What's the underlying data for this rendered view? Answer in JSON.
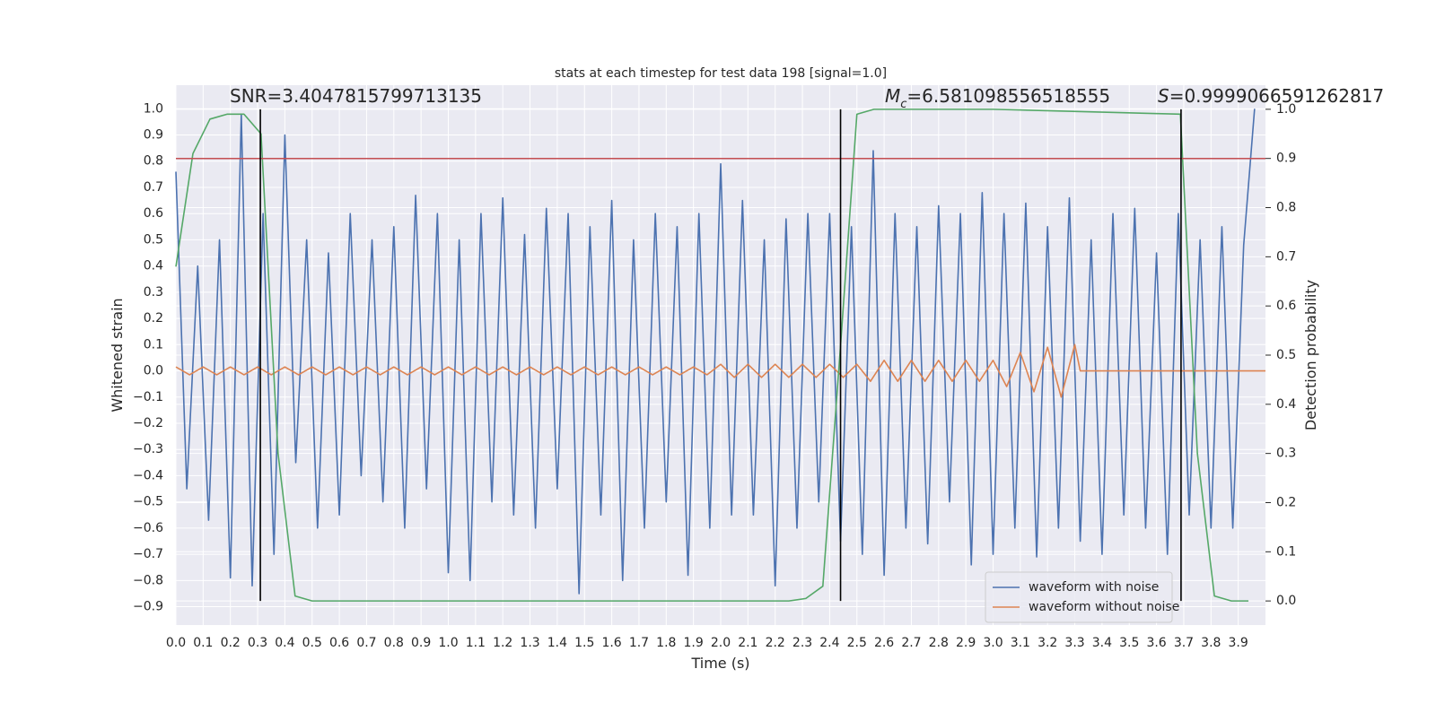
{
  "chart_data": {
    "type": "line",
    "title": "stats at each timestep for test data 198 [signal=1.0]",
    "xlabel": "Time (s)",
    "ylabel": "Whitened strain",
    "y2label": "Detection probability",
    "xlim": [
      0,
      4.0
    ],
    "ylim": [
      -0.97,
      1.09
    ],
    "y2lim": [
      -0.049,
      1.049
    ],
    "xticks": [
      {
        "value": 0,
        "label": "0.0"
      },
      0.1,
      0.2,
      0.3,
      0.4,
      0.5,
      0.6,
      0.7,
      0.8,
      0.9,
      {
        "value": 1,
        "label": "1.0"
      },
      1.1,
      1.2,
      1.3,
      1.4,
      1.5,
      1.6,
      1.7,
      1.8,
      1.9,
      {
        "value": 2,
        "label": "2.0"
      },
      2.1,
      2.2,
      2.3,
      2.4,
      2.5,
      2.6,
      2.7,
      2.8,
      2.9,
      {
        "value": 3,
        "label": "3.0"
      },
      3.1,
      3.2,
      3.3,
      3.4,
      3.5,
      3.6,
      3.7,
      3.8,
      3.9
    ],
    "yticks": [
      {
        "value": -0.9,
        "label": "−0.9"
      },
      {
        "value": -0.8,
        "label": "−0.8"
      },
      {
        "value": -0.7,
        "label": "−0.7"
      },
      {
        "value": -0.6,
        "label": "−0.6"
      },
      {
        "value": -0.5,
        "label": "−0.5"
      },
      {
        "value": -0.4,
        "label": "−0.4"
      },
      {
        "value": -0.3,
        "label": "−0.3"
      },
      {
        "value": -0.2,
        "label": "−0.2"
      },
      {
        "value": -0.1,
        "label": "−0.1"
      },
      {
        "value": 0,
        "label": "0.0"
      },
      0.1,
      0.2,
      0.3,
      0.4,
      0.5,
      0.6,
      0.7,
      0.8,
      0.9,
      {
        "value": 1,
        "label": "1.0"
      }
    ],
    "y2ticks": [
      {
        "value": 0,
        "label": "0.0"
      },
      0.1,
      0.2,
      0.3,
      0.4,
      0.5,
      0.6,
      0.7,
      0.8,
      0.9,
      {
        "value": 1,
        "label": "1.0"
      }
    ],
    "grid": true,
    "legend": "lower right",
    "series": [
      {
        "name": "waveform with noise",
        "color": "#4c72b0",
        "x": [
          0,
          0.04,
          0.08,
          0.12,
          0.16,
          0.2,
          0.24,
          0.28,
          0.32,
          0.36,
          0.4,
          0.44,
          0.48,
          0.52,
          0.56,
          0.6,
          0.64,
          0.68,
          0.72,
          0.76,
          0.8,
          0.84,
          0.88,
          0.92,
          0.96,
          1.0,
          1.04,
          1.08,
          1.12,
          1.16,
          1.2,
          1.24,
          1.28,
          1.32,
          1.36,
          1.4,
          1.44,
          1.48,
          1.52,
          1.56,
          1.6,
          1.64,
          1.68,
          1.72,
          1.76,
          1.8,
          1.84,
          1.88,
          1.92,
          1.96,
          2.0,
          2.04,
          2.08,
          2.12,
          2.16,
          2.2,
          2.24,
          2.28,
          2.32,
          2.36,
          2.4,
          2.44,
          2.48,
          2.52,
          2.56,
          2.6,
          2.64,
          2.68,
          2.72,
          2.76,
          2.8,
          2.84,
          2.88,
          2.92,
          2.96,
          3.0,
          3.04,
          3.08,
          3.12,
          3.16,
          3.2,
          3.24,
          3.28,
          3.32,
          3.36,
          3.4,
          3.44,
          3.48,
          3.52,
          3.56,
          3.6,
          3.64,
          3.68,
          3.72,
          3.76,
          3.8,
          3.84,
          3.88,
          3.92,
          3.96
        ],
        "values": [
          0.76,
          -0.45,
          0.4,
          -0.57,
          0.5,
          -0.79,
          0.98,
          -0.82,
          0.6,
          -0.7,
          0.9,
          -0.35,
          0.5,
          -0.6,
          0.45,
          -0.55,
          0.6,
          -0.4,
          0.5,
          -0.5,
          0.55,
          -0.6,
          0.67,
          -0.45,
          0.6,
          -0.77,
          0.5,
          -0.8,
          0.6,
          -0.5,
          0.66,
          -0.55,
          0.52,
          -0.6,
          0.62,
          -0.45,
          0.6,
          -0.85,
          0.55,
          -0.55,
          0.65,
          -0.8,
          0.5,
          -0.6,
          0.6,
          -0.5,
          0.55,
          -0.78,
          0.6,
          -0.6,
          0.79,
          -0.55,
          0.65,
          -0.55,
          0.5,
          -0.82,
          0.58,
          -0.6,
          0.6,
          -0.5,
          0.6,
          -0.65,
          0.55,
          -0.7,
          0.84,
          -0.78,
          0.6,
          -0.6,
          0.55,
          -0.66,
          0.63,
          -0.5,
          0.6,
          -0.74,
          0.68,
          -0.7,
          0.6,
          -0.6,
          0.64,
          -0.71,
          0.55,
          -0.6,
          0.66,
          -0.65,
          0.5,
          -0.7,
          0.6,
          -0.55,
          0.62,
          -0.6,
          0.45,
          -0.7,
          0.6,
          -0.55,
          0.5,
          -0.6,
          0.55,
          -0.6,
          0.48,
          1.0
        ]
      },
      {
        "name": "waveform without noise",
        "color": "#dd8452",
        "x": [
          0,
          0.05,
          0.1,
          0.15,
          0.2,
          0.25,
          0.3,
          0.35,
          0.4,
          0.45,
          0.5,
          0.55,
          0.6,
          0.65,
          0.7,
          0.75,
          0.8,
          0.85,
          0.9,
          0.95,
          1.0,
          1.05,
          1.1,
          1.15,
          1.2,
          1.25,
          1.3,
          1.35,
          1.4,
          1.45,
          1.5,
          1.55,
          1.6,
          1.65,
          1.7,
          1.75,
          1.8,
          1.85,
          1.9,
          1.95,
          2.0,
          2.05,
          2.1,
          2.15,
          2.2,
          2.25,
          2.3,
          2.35,
          2.4,
          2.45,
          2.5,
          2.55,
          2.6,
          2.65,
          2.7,
          2.75,
          2.8,
          2.85,
          2.9,
          2.95,
          3.0,
          3.05,
          3.1,
          3.15,
          3.2,
          3.25,
          3.3,
          3.32,
          4.0
        ],
        "values": [
          0.015,
          -0.015,
          0.015,
          -0.015,
          0.015,
          -0.015,
          0.015,
          -0.015,
          0.015,
          -0.015,
          0.015,
          -0.015,
          0.015,
          -0.015,
          0.015,
          -0.015,
          0.015,
          -0.015,
          0.015,
          -0.015,
          0.015,
          -0.015,
          0.015,
          -0.015,
          0.015,
          -0.015,
          0.015,
          -0.015,
          0.015,
          -0.015,
          0.015,
          -0.015,
          0.015,
          -0.015,
          0.015,
          -0.015,
          0.015,
          -0.015,
          0.015,
          -0.015,
          0.025,
          -0.025,
          0.025,
          -0.025,
          0.025,
          -0.025,
          0.025,
          -0.025,
          0.025,
          -0.025,
          0.025,
          -0.04,
          0.04,
          -0.04,
          0.04,
          -0.04,
          0.04,
          -0.04,
          0.04,
          -0.04,
          0.04,
          -0.06,
          0.07,
          -0.08,
          0.09,
          -0.1,
          0.1,
          0,
          0
        ]
      },
      {
        "color": "#55a868",
        "axis": "y2",
        "x": [
          0,
          0.0625,
          0.125,
          0.1875,
          0.25,
          0.3125,
          0.375,
          0.4375,
          0.5,
          0.5625,
          1.0,
          2.0,
          2.25,
          2.3125,
          2.375,
          2.4375,
          2.5,
          2.5625,
          3.0,
          3.6875,
          3.75,
          3.8125,
          3.875,
          3.9375
        ],
        "values": [
          0.68,
          0.91,
          0.98,
          0.99,
          0.99,
          0.95,
          0.3,
          0.01,
          0.0,
          0.0,
          0.0,
          0.0,
          0.0,
          0.005,
          0.03,
          0.5,
          0.99,
          1.0,
          1.0,
          0.99,
          0.3,
          0.01,
          0.0,
          0.0
        ]
      }
    ],
    "threshold": {
      "value": 0.9,
      "color": "#c44e52",
      "axis": "y2"
    },
    "vlines": {
      "x": [
        0.31,
        2.44,
        3.69
      ],
      "range": [
        0,
        1
      ],
      "axis": "y2",
      "color": "#000000"
    },
    "annotations": {
      "snr": "SNR=3.4047815799713135",
      "mc": {
        "symbol": "M",
        "subscript": "c",
        "text": "=6.581098556518555"
      },
      "s": {
        "symbol": "S",
        "text": "=0.9999066591262817"
      }
    }
  }
}
